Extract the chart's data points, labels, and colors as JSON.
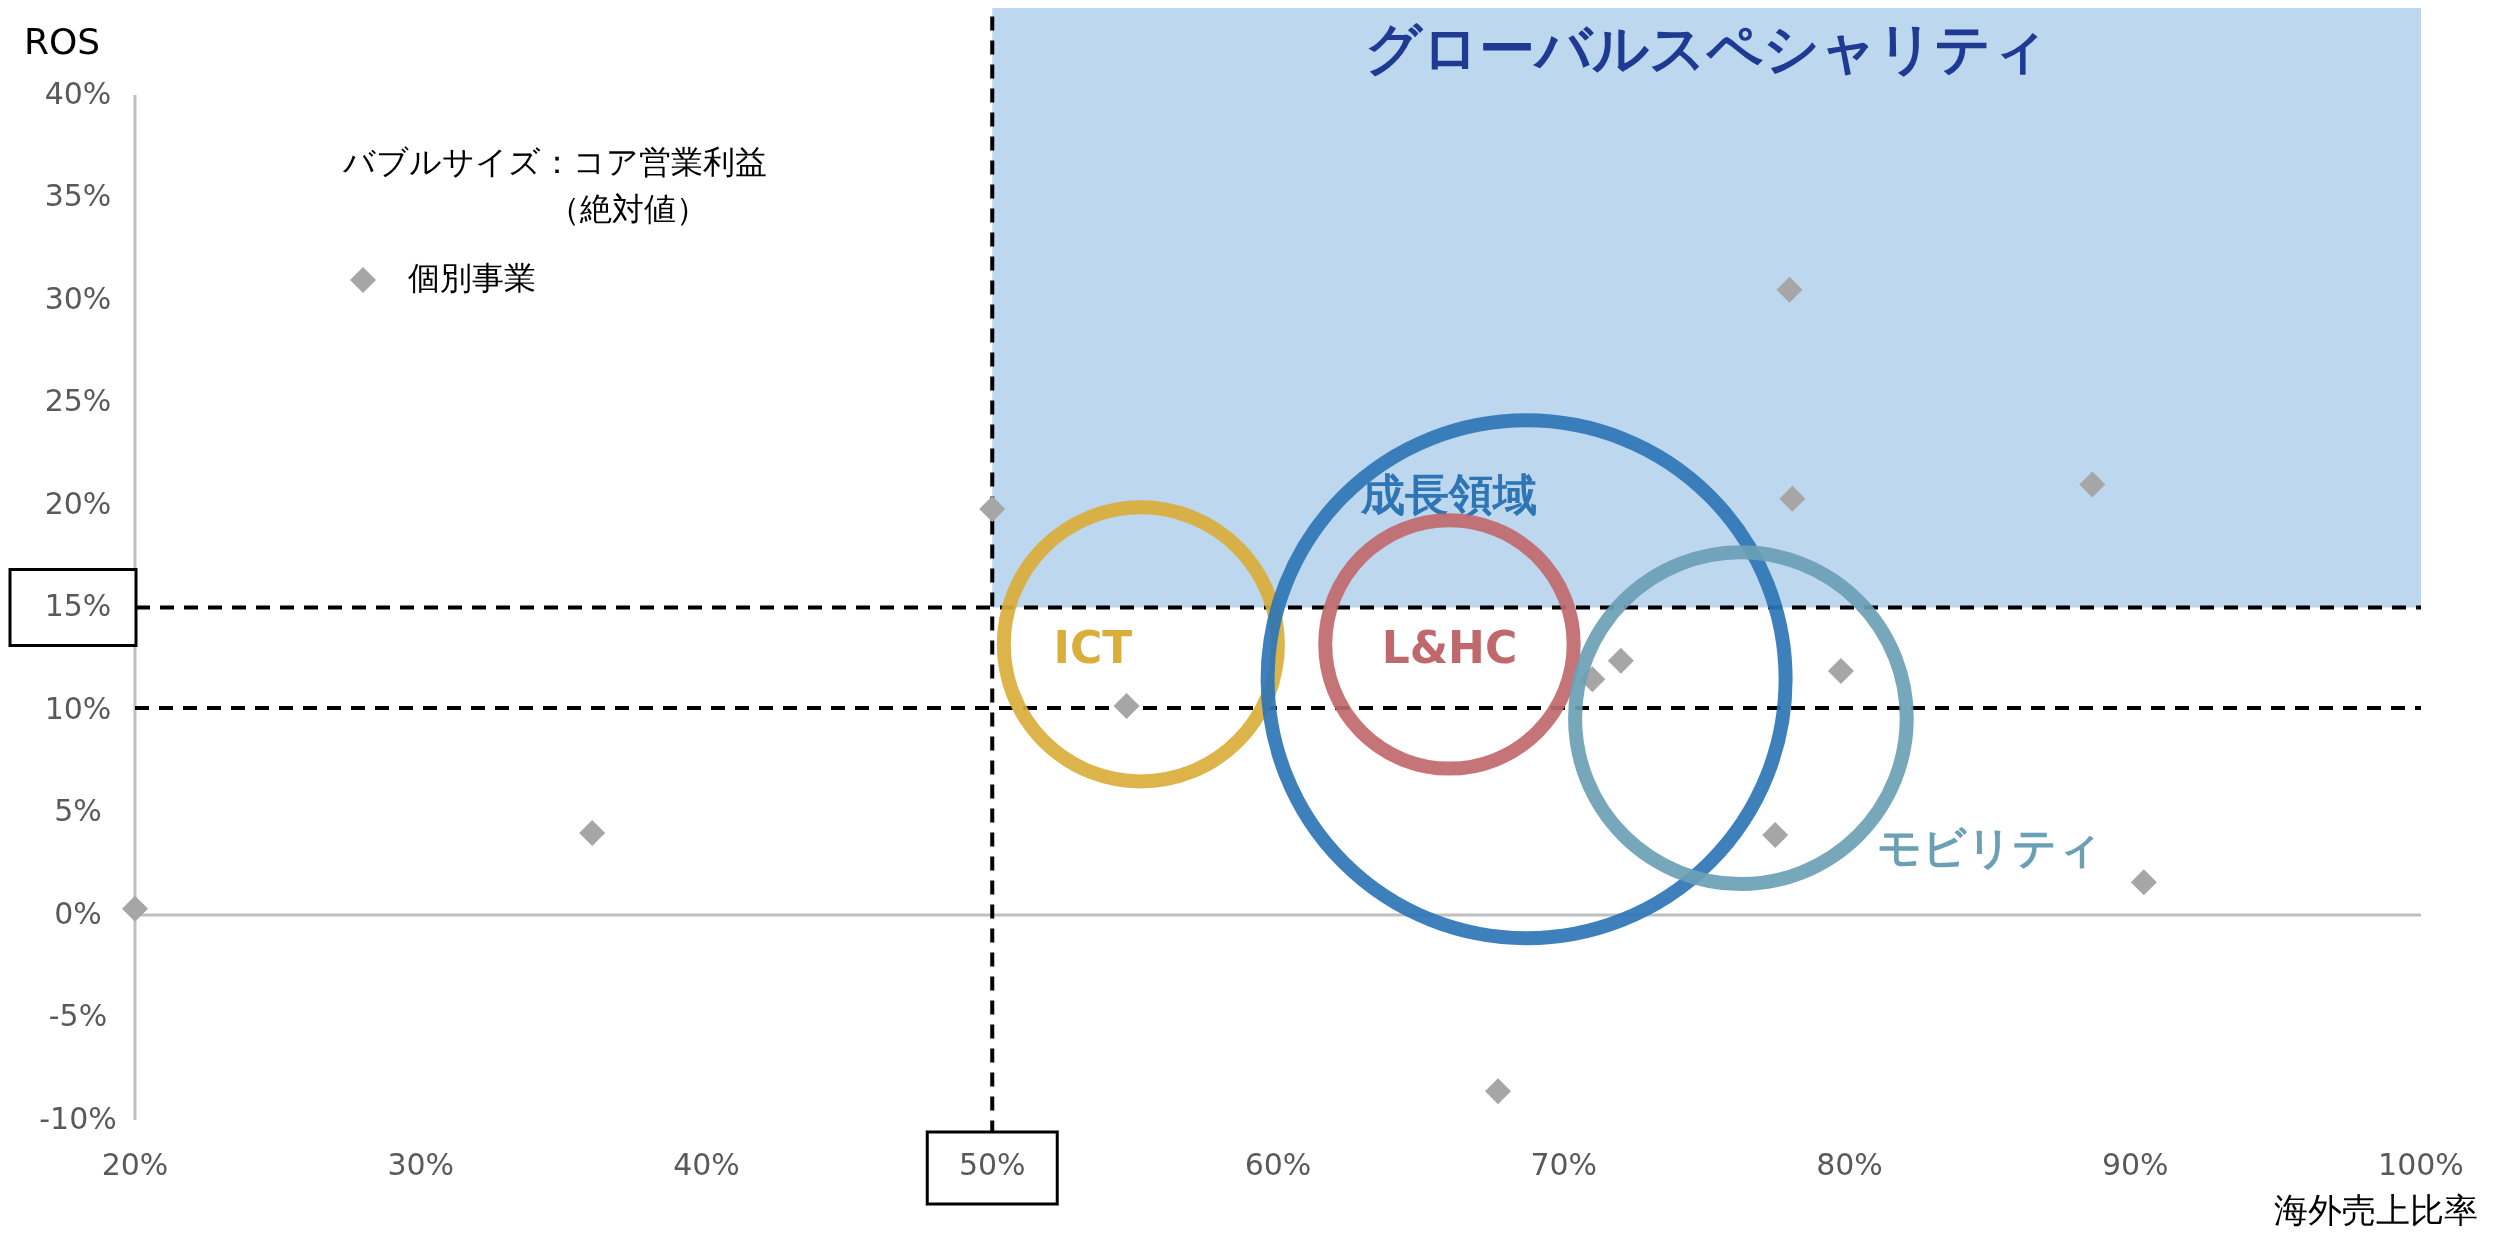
{
  "chart_data": {
    "type": "bubble",
    "xlabel": "海外売上比率",
    "ylabel": "ROS",
    "xlim": [
      20,
      100
    ],
    "ylim": [
      -10,
      45
    ],
    "xticks": [
      {
        "value": 20,
        "label": "20%"
      },
      {
        "value": 30,
        "label": "30%"
      },
      {
        "value": 40,
        "label": "40%"
      },
      {
        "value": 50,
        "label": "50%"
      },
      {
        "value": 60,
        "label": "60%"
      },
      {
        "value": 70,
        "label": "70%"
      },
      {
        "value": 80,
        "label": "80%"
      },
      {
        "value": 90,
        "label": "90%"
      },
      {
        "value": 100,
        "label": "100%"
      }
    ],
    "yticks": [
      {
        "value": -10,
        "label": "-10%"
      },
      {
        "value": -5,
        "label": "-5%"
      },
      {
        "value": 0,
        "label": "0%"
      },
      {
        "value": 5,
        "label": "5%"
      },
      {
        "value": 10,
        "label": "10%"
      },
      {
        "value": 15,
        "label": "15%"
      },
      {
        "value": 20,
        "label": "20%"
      },
      {
        "value": 25,
        "label": "25%"
      },
      {
        "value": 30,
        "label": "30%"
      },
      {
        "value": 35,
        "label": "35%"
      },
      {
        "value": 40,
        "label": "40%"
      }
    ],
    "grid": false,
    "legend": "top left",
    "annotations": [
      "バブルサイズ：コア営業利益",
      "（絶対値）"
    ],
    "bands": [
      {
        "axis": "x",
        "from": 50,
        "to": 100,
        "label": "グローバルスペシャリティ",
        "color": "#bdd7ee"
      }
    ],
    "ref_lines": [
      {
        "axis": "y",
        "value": 15,
        "line_style": "dashed",
        "color": "#000000"
      },
      {
        "axis": "y",
        "value": 10.1,
        "line_style": "dashed",
        "color": "#000000"
      },
      {
        "axis": "x",
        "value": 50,
        "line_style": "dashed",
        "color": "#000000"
      }
    ],
    "series": [
      {
        "name": "個別事業",
        "type": "scatter",
        "marker": "diamond",
        "color": "#a6a6a6",
        "x": [
          20,
          36,
          50,
          54.7,
          77.9,
          78,
          88.5,
          71,
          72,
          79.7,
          77.4,
          90.3,
          67.7
        ],
        "values": [
          0.3,
          4,
          19.8,
          10.2,
          30.5,
          20.3,
          21,
          11.5,
          12.4,
          11.9,
          3.9,
          1.6,
          -8.6
        ]
      },
      {
        "name": "ICT",
        "color": "#d9ae3a",
        "x": [
          55.2
        ],
        "values": [
          13.2
        ],
        "sizes": [
          0.28
        ]
      },
      {
        "name": "成長領域",
        "color": "#2e75b6",
        "x": [
          68.7
        ],
        "values": [
          11.5
        ],
        "sizes": [
          1
        ]
      },
      {
        "name": "L&HC",
        "color": "#c0696c",
        "x": [
          66
        ],
        "values": [
          13.2
        ],
        "sizes": [
          0.23
        ]
      },
      {
        "name": "モビリティ",
        "color": "#6a9fb5",
        "x": [
          76.2
        ],
        "values": [
          9.6
        ],
        "sizes": [
          0.41
        ]
      }
    ]
  }
}
